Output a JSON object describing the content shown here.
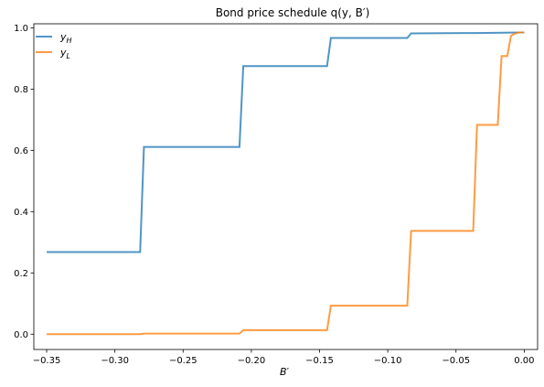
{
  "chart_data": {
    "type": "line",
    "title": "Bond price schedule q(y, B′)",
    "xlabel": "B′",
    "ylabel": "",
    "xlim": [
      -0.3594,
      0.0098
    ],
    "ylim": [
      -0.05,
      1.0132
    ],
    "grid": false,
    "legend_position": "top-left",
    "x_ticks": [
      -0.35,
      -0.3,
      -0.25,
      -0.2,
      -0.15,
      -0.1,
      -0.05,
      0.0
    ],
    "x_tick_labels": [
      "−0.35",
      "−0.30",
      "−0.25",
      "−0.20",
      "−0.15",
      "−0.10",
      "−0.05",
      "0.00"
    ],
    "y_ticks": [
      0.0,
      0.2,
      0.4,
      0.6,
      0.8,
      1.0
    ],
    "y_tick_labels": [
      "0.0",
      "0.2",
      "0.4",
      "0.6",
      "0.8",
      "1.0"
    ],
    "series": [
      {
        "name": "y_H",
        "label_main": "y",
        "label_sub": "H",
        "color": "#1f77b4",
        "x": [
          -0.35,
          -0.2815,
          -0.2787,
          -0.2087,
          -0.2059,
          -0.1445,
          -0.1417,
          -0.0857,
          -0.0829,
          -0.035,
          -0.0025,
          0.0
        ],
        "y": [
          0.268,
          0.268,
          0.611,
          0.611,
          0.875,
          0.875,
          0.967,
          0.967,
          0.982,
          0.983,
          0.985,
          0.985
        ]
      },
      {
        "name": "y_L",
        "label_main": "y",
        "label_sub": "L",
        "color": "#ff7f0e",
        "x": [
          -0.35,
          -0.2815,
          -0.2787,
          -0.2087,
          -0.2059,
          -0.1445,
          -0.1417,
          -0.0857,
          -0.0829,
          -0.0374,
          -0.0346,
          -0.0194,
          -0.0166,
          -0.0124,
          -0.0097,
          -0.0069,
          -0.0041,
          0.0
        ],
        "y": [
          0.0,
          0.0,
          0.002,
          0.002,
          0.013,
          0.013,
          0.093,
          0.093,
          0.337,
          0.337,
          0.683,
          0.683,
          0.908,
          0.908,
          0.974,
          0.981,
          0.985,
          0.985
        ]
      }
    ]
  }
}
